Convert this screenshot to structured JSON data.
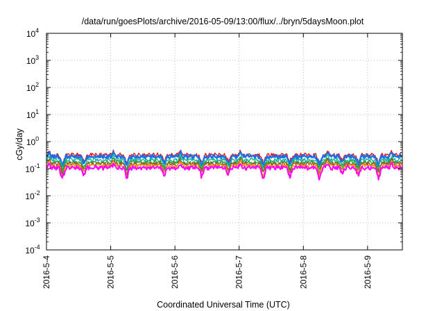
{
  "chart_data": {
    "type": "line",
    "title": "/data/run/goesPlots/archive/2016-05-09/13:00/flux/../bryn/5daysMoon.plot",
    "xlabel": "Coordinated Universal Time (UTC)",
    "ylabel": "cGy/day",
    "yscale": "log",
    "ylim": [
      0.0001,
      10000
    ],
    "xlim": [
      "2016-05-04 00:00",
      "2016-05-09 13:00"
    ],
    "grid": true,
    "y_ticks": [
      {
        "base": "10",
        "exp": "-4"
      },
      {
        "base": "10",
        "exp": "-3"
      },
      {
        "base": "10",
        "exp": "-2"
      },
      {
        "base": "10",
        "exp": "-1"
      },
      {
        "base": "10",
        "exp": "0"
      },
      {
        "base": "10",
        "exp": "1"
      },
      {
        "base": "10",
        "exp": "2"
      },
      {
        "base": "10",
        "exp": "3"
      },
      {
        "base": "10",
        "exp": "4"
      }
    ],
    "x_ticks": [
      "2016-5-4",
      "2016-5-5",
      "2016-5-6",
      "2016-5-7",
      "2016-5-8",
      "2016-5-9"
    ],
    "series": [
      {
        "color": "#e41a1c",
        "base": 0.32
      },
      {
        "color": "#1e6fe6",
        "base": 0.28
      },
      {
        "color": "#18b3a0",
        "base": 0.21
      },
      {
        "color": "#2ca02c",
        "base": 0.17
      },
      {
        "color": "#a0522d",
        "base": 0.15
      },
      {
        "color": "#ff8c1a",
        "base": 0.13
      },
      {
        "color": "#ff00ff",
        "base": 0.11
      }
    ],
    "dips": [
      {
        "date": "2016-05-04 06:00",
        "depth": 0.6
      },
      {
        "date": "2016-05-04 14:00",
        "depth": 0.45
      },
      {
        "date": "2016-05-05 06:00",
        "depth": 0.55
      },
      {
        "date": "2016-05-05 20:00",
        "depth": 0.45
      },
      {
        "date": "2016-05-06 10:00",
        "depth": 0.5
      },
      {
        "date": "2016-05-06 20:00",
        "depth": 0.45
      },
      {
        "date": "2016-05-07 09:00",
        "depth": 0.55
      },
      {
        "date": "2016-05-07 19:00",
        "depth": 0.5
      },
      {
        "date": "2016-05-08 06:00",
        "depth": 0.55
      },
      {
        "date": "2016-05-08 14:30",
        "depth": 0.38
      },
      {
        "date": "2016-05-08 20:30",
        "depth": 0.5
      },
      {
        "date": "2016-05-09 04:00",
        "depth": 0.55
      }
    ],
    "spikes": [
      {
        "date": "2016-05-04 01:00"
      },
      {
        "date": "2016-05-05 01:00"
      },
      {
        "date": "2016-05-06 02:00"
      },
      {
        "date": "2016-05-07 00:30"
      },
      {
        "date": "2016-05-08 09:00"
      },
      {
        "date": "2016-05-09 09:00"
      }
    ]
  }
}
